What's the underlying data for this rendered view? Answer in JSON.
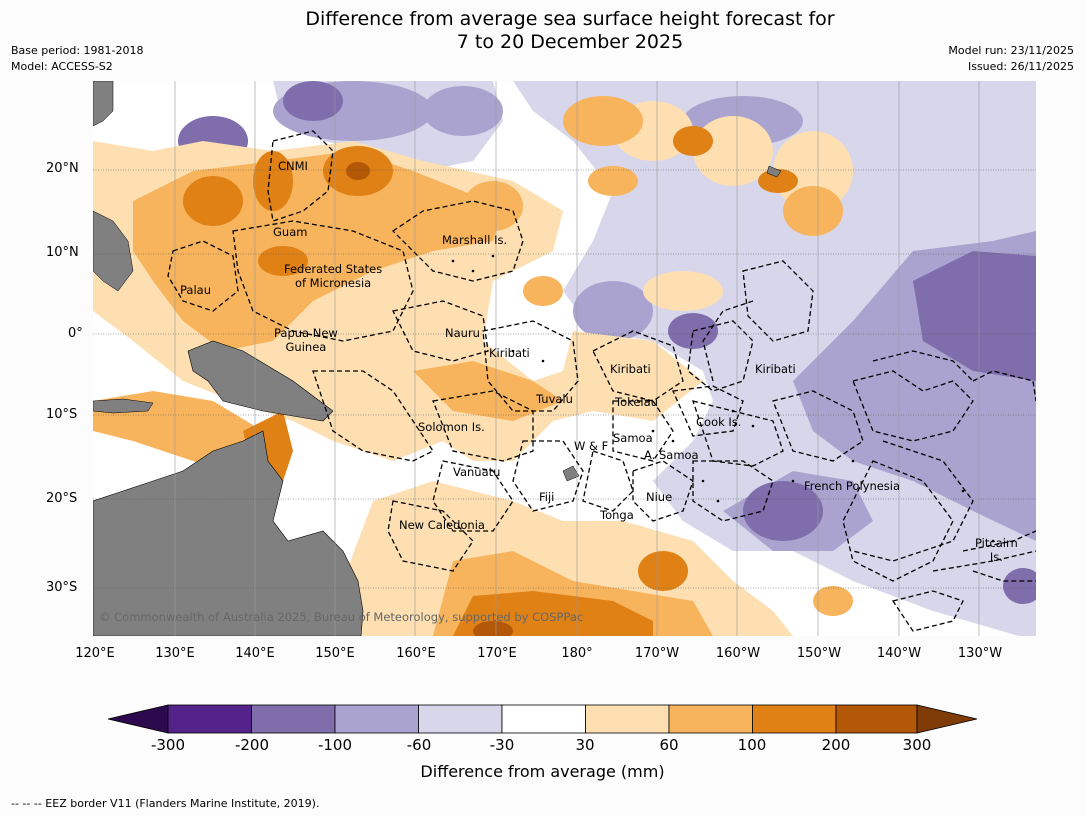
{
  "title": {
    "line1": "Difference from average sea surface height forecast for",
    "line2": "7 to 20 December 2025"
  },
  "meta": {
    "base_period": "Base period: 1981-2018",
    "model": "Model: ACCESS-S2",
    "model_run": "Model run: 23/11/2025",
    "issued": "Issued: 26/11/2025"
  },
  "map": {
    "lat_labels": [
      "20°N",
      "10°N",
      "0°",
      "10°S",
      "20°S",
      "30°S"
    ],
    "lon_labels": [
      "120°E",
      "130°E",
      "140°E",
      "150°E",
      "160°E",
      "170°E",
      "180°",
      "170°W",
      "160°W",
      "150°W",
      "140°W",
      "130°W"
    ],
    "places": {
      "cnmi": "CNMI",
      "guam": "Guam",
      "marshall": "Marshall Is.",
      "palau": "Palau",
      "fsm1": "Federated States",
      "fsm2": "of Micronesia",
      "png1": "Papua New",
      "png2": "Guinea",
      "nauru": "Nauru",
      "kiribati_w": "Kiribati",
      "kiribati_c": "Kiribati",
      "kiribati_e": "Kiribati",
      "tuvalu": "Tuvalu",
      "tokelau": "Tokelau",
      "solomon": "Solomon Is.",
      "samoa": "Samoa",
      "wf": "W & F",
      "asamoa": "A. Samoa",
      "cook": "Cook Is.",
      "vanuatu": "Vanuatu",
      "fiji": "Fiji",
      "niue": "Niue",
      "tonga": "Tonga",
      "frpoly": "French Polynesia",
      "newcal": "New Caledonia",
      "pitcairn1": "Pitcairn",
      "pitcairn2": "Is."
    },
    "copyright": "© Commonwealth of Australia 2025, Bureau of Meteorology, supported by COSPPac",
    "land_color": "#808080"
  },
  "colorbar": {
    "ticks": [
      "-300",
      "-200",
      "-100",
      "-60",
      "-30",
      "30",
      "60",
      "100",
      "200",
      "300"
    ],
    "colors": [
      "#2d0a4e",
      "#54238a",
      "#7f6dac",
      "#aba3cf",
      "#d7d6ea",
      "#ffffff",
      "#fddfb2",
      "#f8b45c",
      "#e08115",
      "#b35806",
      "#7f3b08"
    ],
    "label": "Difference from average (mm)"
  },
  "footnote": "--  --  -- EEZ border V11 (Flanders Marine Institute, 2019)."
}
